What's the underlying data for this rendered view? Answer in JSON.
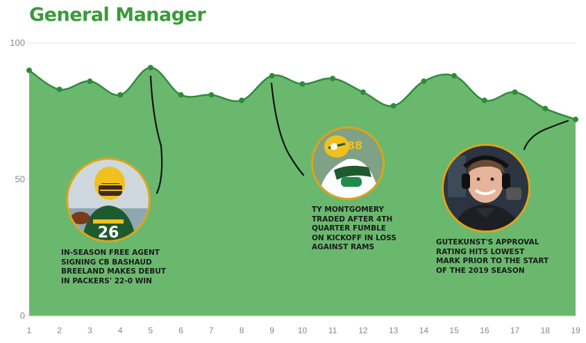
{
  "title": "General Manager",
  "colors": {
    "line": "#2e8b3a",
    "fill": "#6ab86e",
    "title": "#3a9a3a",
    "photo_border": "#e0a316",
    "jersey_green": "#1f5a2e",
    "helmet_yellow": "#f2c01e"
  },
  "chart_data": {
    "type": "area",
    "title": "General Manager",
    "xlabel": "",
    "ylabel": "",
    "x": [
      1,
      2,
      3,
      4,
      5,
      6,
      7,
      8,
      9,
      10,
      11,
      12,
      13,
      14,
      15,
      16,
      17,
      18,
      19
    ],
    "values": [
      90,
      83,
      86,
      81,
      91,
      81,
      81,
      79,
      88,
      85,
      87,
      82,
      77,
      86,
      88,
      79,
      82,
      76,
      72
    ],
    "ylim": [
      0,
      100
    ],
    "yticks": [
      0,
      50,
      100
    ],
    "xlim": [
      1,
      19
    ],
    "grid": true,
    "annotations": [
      {
        "x": 5,
        "text": "IN-SEASON FREE AGENT SIGNING CB BASHAUD BREELAND MAKES DEBUT IN PACKERS' 22-0 WIN",
        "photo_number": "26"
      },
      {
        "x": 9,
        "text": "TY MONTGOMERY TRADED AFTER 4TH QUARTER FUMBLE ON KICKOFF IN LOSS AGAINST RAMS",
        "photo_number": "88"
      },
      {
        "x": 19,
        "text": "GUTEKUNST'S APPROVAL RATING HITS LOWEST MARK PRIOR TO THE START OF THE 2019 SEASON"
      }
    ]
  },
  "annotations_display": [
    {
      "lines": [
        "IN-SEASON FREE AGENT",
        "SIGNING CB BASHAUD",
        "BREELAND MAKES DEBUT",
        "IN PACKERS' 22-0 WIN"
      ]
    },
    {
      "lines": [
        "TY MONTGOMERY",
        "TRADED AFTER 4TH",
        "QUARTER FUMBLE",
        "ON KICKOFF IN LOSS",
        "AGAINST RAMS"
      ]
    },
    {
      "lines": [
        "GUTEKUNST'S APPROVAL",
        "RATING HITS LOWEST",
        "MARK PRIOR TO THE START",
        "OF THE 2019 SEASON"
      ]
    }
  ]
}
